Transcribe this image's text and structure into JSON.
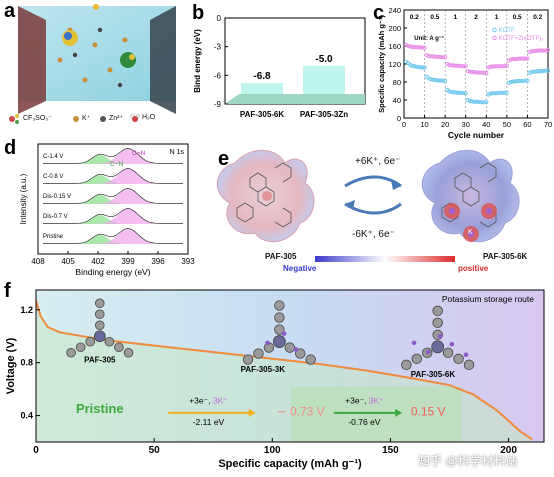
{
  "panel_labels": {
    "a": "a",
    "b": "b",
    "c": "c",
    "d": "d",
    "e": "e",
    "f": "f"
  },
  "panel_a": {
    "legend": [
      "CF₃SO₃⁻",
      "K⁺",
      "Zn²⁺",
      "H₂O"
    ]
  },
  "panel_b": {
    "chart_data": {
      "type": "bar",
      "categories": [
        "PAF-305-6K",
        "PAF-305-3Zn"
      ],
      "values": [
        -6.8,
        -5.0
      ],
      "value_labels": [
        "-6.8",
        "-5.0"
      ],
      "ylabel": "Bind energy (eV)",
      "yticks": [
        "0",
        "-3",
        "-6",
        "-9"
      ],
      "ylim": [
        0,
        -9
      ],
      "colors": {
        "bar": "#bff5ec",
        "floor": "#9fd8c2"
      }
    }
  },
  "panel_c": {
    "chart_data": {
      "type": "scatter",
      "xlabel": "Cycle number",
      "ylabel": "Specific capacity (mAh g⁻¹)",
      "xticks": [
        "0",
        "10",
        "20",
        "30",
        "40",
        "50",
        "60",
        "70"
      ],
      "yticks": [
        "0",
        "40",
        "80",
        "120",
        "160",
        "200",
        "240"
      ],
      "xlim": [
        0,
        70
      ],
      "ylim": [
        0,
        240
      ],
      "unit_label": "Unit: A g⁻¹",
      "rate_labels": [
        "0.2",
        "0.5",
        "1",
        "2",
        "1",
        "0.5",
        "0.2"
      ],
      "rate_x": [
        5,
        15,
        25,
        35,
        45,
        55,
        65
      ],
      "segment_dividers": [
        10,
        20,
        30,
        40,
        50,
        60
      ],
      "series": [
        {
          "name": "KOTF",
          "color": "#6fc8ec",
          "x": [
            1,
            2,
            3,
            4,
            5,
            6,
            7,
            8,
            9,
            10,
            11,
            12,
            13,
            14,
            15,
            16,
            17,
            18,
            19,
            20,
            21,
            22,
            23,
            24,
            25,
            26,
            27,
            28,
            29,
            30,
            31,
            32,
            33,
            34,
            35,
            36,
            37,
            38,
            39,
            40,
            41,
            42,
            43,
            44,
            45,
            46,
            47,
            48,
            49,
            50,
            51,
            52,
            53,
            54,
            55,
            56,
            57,
            58,
            59,
            60,
            61,
            62,
            63,
            64,
            65,
            66,
            67,
            68,
            69,
            70
          ],
          "y": [
            125,
            122,
            118,
            116,
            115,
            114,
            113,
            113,
            112,
            112,
            92,
            88,
            86,
            85,
            84,
            84,
            83,
            83,
            83,
            82,
            62,
            59,
            58,
            57,
            57,
            56,
            56,
            56,
            55,
            55,
            40,
            38,
            37,
            36,
            36,
            36,
            35,
            35,
            35,
            35,
            52,
            54,
            55,
            55,
            55,
            56,
            56,
            56,
            56,
            56,
            78,
            80,
            81,
            81,
            82,
            82,
            82,
            82,
            83,
            83,
            100,
            102,
            103,
            103,
            104,
            104,
            104,
            105,
            105,
            105
          ]
        },
        {
          "name": "KOTF+Zn(OTF)₂",
          "color": "#e88be6",
          "x": [
            1,
            2,
            3,
            4,
            5,
            6,
            7,
            8,
            9,
            10,
            11,
            12,
            13,
            14,
            15,
            16,
            17,
            18,
            19,
            20,
            21,
            22,
            23,
            24,
            25,
            26,
            27,
            28,
            29,
            30,
            31,
            32,
            33,
            34,
            35,
            36,
            37,
            38,
            39,
            40,
            41,
            42,
            43,
            44,
            45,
            46,
            47,
            48,
            49,
            50,
            51,
            52,
            53,
            54,
            55,
            56,
            57,
            58,
            59,
            60,
            61,
            62,
            63,
            64,
            65,
            66,
            67,
            68,
            69,
            70
          ],
          "y": [
            162,
            160,
            159,
            158,
            158,
            157,
            157,
            157,
            156,
            156,
            140,
            138,
            137,
            137,
            136,
            136,
            136,
            135,
            135,
            135,
            120,
            118,
            117,
            117,
            116,
            116,
            116,
            115,
            115,
            115,
            104,
            103,
            102,
            102,
            101,
            101,
            101,
            101,
            100,
            100,
            112,
            114,
            114,
            115,
            115,
            115,
            115,
            115,
            116,
            116,
            128,
            130,
            131,
            131,
            131,
            132,
            132,
            132,
            132,
            132,
            146,
            148,
            149,
            149,
            150,
            150,
            150,
            150,
            150,
            151
          ]
        }
      ]
    }
  },
  "panel_d": {
    "chart_data": {
      "type": "line",
      "xlabel": "Binding energy (eV)",
      "ylabel": "Intensity (a.u.)",
      "xticks": [
        "408",
        "405",
        "402",
        "399",
        "396",
        "393"
      ],
      "xlim": [
        408,
        393
      ],
      "title_right": "N 1s",
      "peak_labels": {
        "cn": "C−N",
        "ceqn": "C=N"
      },
      "curves": [
        "C-1.4 V",
        "C-0.8 V",
        "Dis-0.15 V",
        "Dis-0.7 V",
        "Pristine"
      ],
      "green_peak_eV": [
        401.8,
        401.8,
        401.8,
        401.8,
        401.8
      ],
      "pink_peak_eV": [
        399.0,
        399.0,
        399.0,
        399.0,
        399.0
      ]
    }
  },
  "panel_e": {
    "left_name": "PAF-305",
    "right_name": "PAF-305-6K",
    "forward_reaction": "+6K⁺, 6e⁻",
    "reverse_reaction": "-6K⁺, 6e⁻",
    "scale_negative": "Negative",
    "scale_positive": "positive",
    "k_marker": "K"
  },
  "panel_f": {
    "chart_data": {
      "type": "line",
      "xlabel": "Specific capacity (mAh g⁻¹)",
      "ylabel": "Voltage (V)",
      "xticks": [
        "0",
        "50",
        "100",
        "150",
        "200"
      ],
      "yticks": [
        "0.4",
        "0.8",
        "1.2"
      ],
      "xlim": [
        0,
        215
      ],
      "ylim": [
        0.2,
        1.35
      ],
      "series": [
        {
          "name": "",
          "color": "#f08a3c",
          "x": [
            0,
            2,
            5,
            10,
            20,
            30,
            40,
            60,
            80,
            100,
            120,
            140,
            160,
            175,
            185,
            195,
            200,
            205,
            210
          ],
          "y": [
            1.27,
            1.15,
            1.07,
            1.03,
            1.0,
            0.97,
            0.95,
            0.91,
            0.87,
            0.83,
            0.79,
            0.74,
            0.68,
            0.63,
            0.56,
            0.44,
            0.36,
            0.28,
            0.22
          ]
        }
      ],
      "title_right": "Potassium storage route",
      "mol_labels": [
        "PAF-305",
        "PAF-305-3K",
        "PAF-305-6K"
      ],
      "pristine": "Pristine",
      "step1_top_a": "+3e⁻, ",
      "step1_top_b": "3K⁺",
      "step1_bottom": "-2.11 eV",
      "step1_voltage": "∼ 0.73 V",
      "step2_top_a": "+3e⁻, ",
      "step2_top_b": "3K⁺",
      "step2_bottom": "-0.76 eV",
      "step2_voltage": "0.15 V"
    }
  },
  "watermark": "知乎 @科学材料站"
}
